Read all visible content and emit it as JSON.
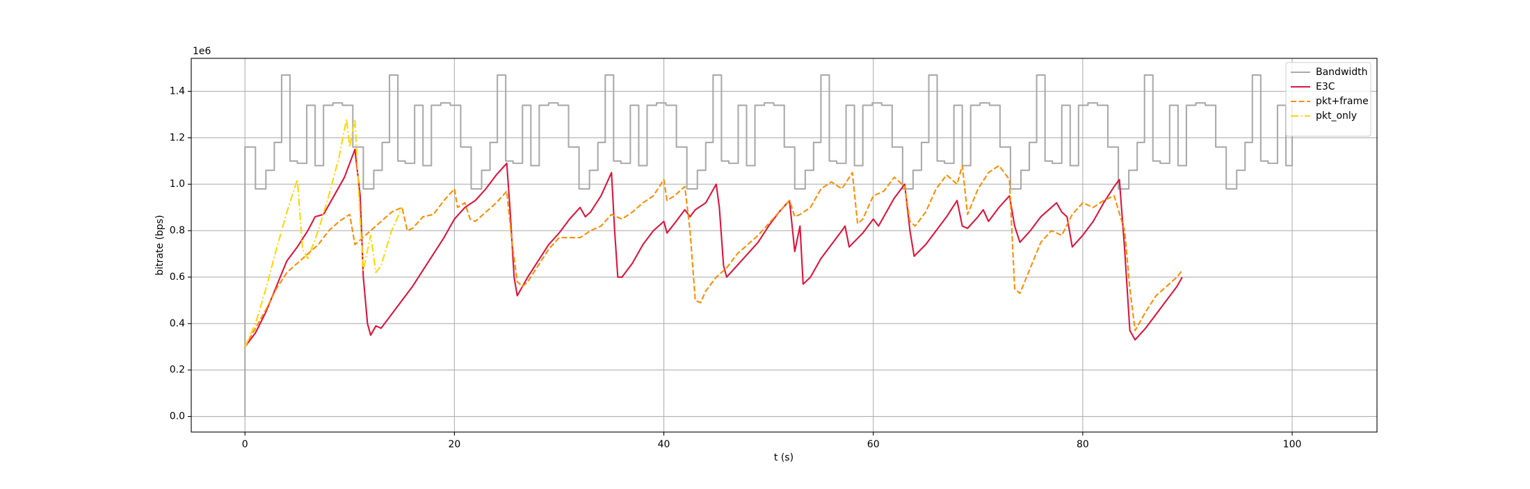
{
  "chart_data": {
    "type": "line",
    "y_offset_label": "1e6",
    "xlabel": "t (s)",
    "ylabel": "bitrate (bps)",
    "xlim": [
      -5.13,
      108.1
    ],
    "ylim": [
      -67000,
      1542000
    ],
    "xticks": [
      0,
      20,
      40,
      60,
      80,
      100
    ],
    "yticks": [
      {
        "value": 0,
        "label": "0.0"
      },
      {
        "value": 200000,
        "label": "0.2"
      },
      {
        "value": 400000,
        "label": "0.4"
      },
      {
        "value": 600000,
        "label": "0.6"
      },
      {
        "value": 800000,
        "label": "0.8"
      },
      {
        "value": 1000000,
        "label": "1.0"
      },
      {
        "value": 1200000,
        "label": "1.2"
      },
      {
        "value": 1400000,
        "label": "1.4"
      }
    ],
    "grid": true,
    "legend": "upper right",
    "series": [
      {
        "name": "Bandwidth",
        "color": "#aaaaaa",
        "linestyle": "solid",
        "drawstyle": "steps-post",
        "x": [
          0,
          0,
          1,
          2,
          2.8,
          3.5,
          4.3,
          5,
          5.9,
          6.7,
          7.5,
          8.4,
          9.3,
          10.3,
          11.3,
          12.3,
          13.1,
          13.8,
          14.6,
          15.3,
          16.2,
          17,
          17.8,
          18.7,
          19.6,
          20.6,
          21.6,
          22.6,
          23.4,
          24.1,
          24.9,
          25.6,
          26.5,
          27.3,
          28.1,
          29,
          29.9,
          30.9,
          31.9,
          32.9,
          33.7,
          34.4,
          35.2,
          35.9,
          36.8,
          37.6,
          38.4,
          39.3,
          40.2,
          41.2,
          42.2,
          43.2,
          44,
          44.7,
          45.5,
          46.2,
          47.1,
          47.9,
          48.7,
          49.6,
          50.5,
          51.5,
          52.5,
          53.5,
          54.3,
          55,
          55.8,
          56.5,
          57.4,
          58.2,
          59,
          59.9,
          60.8,
          61.8,
          62.8,
          63.8,
          64.6,
          65.3,
          66.1,
          66.8,
          67.7,
          68.5,
          69.3,
          70.2,
          71.1,
          72.1,
          73.1,
          74.1,
          74.9,
          75.6,
          76.4,
          77.1,
          78,
          78.8,
          79.6,
          80.5,
          81.4,
          82.4,
          83.4,
          84.4,
          85.2,
          85.9,
          86.7,
          87.4,
          88.3,
          89.1,
          89.9,
          90.8,
          91.7,
          92.7,
          93.7,
          94.7,
          95.5,
          96.2,
          97,
          97.7,
          98.6,
          99.4,
          100
        ],
        "values": [
          0,
          1160000,
          980000,
          1060000,
          1180000,
          1470000,
          1100000,
          1090000,
          1340000,
          1080000,
          1340000,
          1350000,
          1340000,
          1160000,
          980000,
          1060000,
          1180000,
          1470000,
          1100000,
          1090000,
          1340000,
          1080000,
          1340000,
          1350000,
          1340000,
          1160000,
          980000,
          1060000,
          1180000,
          1470000,
          1100000,
          1090000,
          1340000,
          1080000,
          1340000,
          1350000,
          1340000,
          1160000,
          980000,
          1060000,
          1180000,
          1470000,
          1100000,
          1090000,
          1340000,
          1080000,
          1340000,
          1350000,
          1340000,
          1160000,
          980000,
          1060000,
          1180000,
          1470000,
          1100000,
          1090000,
          1340000,
          1080000,
          1340000,
          1350000,
          1340000,
          1160000,
          980000,
          1060000,
          1180000,
          1470000,
          1100000,
          1090000,
          1340000,
          1080000,
          1340000,
          1350000,
          1340000,
          1160000,
          980000,
          1060000,
          1180000,
          1470000,
          1100000,
          1090000,
          1340000,
          1080000,
          1340000,
          1350000,
          1340000,
          1160000,
          980000,
          1060000,
          1180000,
          1470000,
          1100000,
          1090000,
          1340000,
          1080000,
          1340000,
          1350000,
          1340000,
          1160000,
          980000,
          1060000,
          1180000,
          1470000,
          1100000,
          1090000,
          1340000,
          1080000,
          1340000,
          1350000,
          1340000,
          1160000,
          980000,
          1060000,
          1180000,
          1470000,
          1100000,
          1090000,
          1340000,
          1080000,
          1340000
        ]
      },
      {
        "name": "E3C",
        "color": "#dc143c",
        "linestyle": "solid",
        "x": [
          0,
          1,
          2,
          3,
          4,
          5,
          6,
          6.7,
          7.5,
          8.5,
          9.5,
          10.5,
          11,
          11.3,
          11.7,
          12,
          12.5,
          13,
          14,
          15,
          16,
          17,
          18,
          19,
          20,
          21,
          22,
          23,
          24,
          25,
          25.3,
          25.7,
          26,
          27,
          28,
          29,
          30,
          31,
          32,
          32.5,
          33,
          34,
          35,
          35.3,
          35.6,
          36,
          37,
          38,
          39,
          40,
          40.3,
          41,
          42,
          42.5,
          43,
          44,
          45,
          45.3,
          45.7,
          46,
          47,
          48,
          49,
          50,
          51,
          52,
          52.5,
          53,
          53.3,
          54,
          55,
          56,
          57,
          57.3,
          57.7,
          59,
          60,
          60.5,
          61,
          62,
          63,
          63.5,
          63.9,
          65,
          66,
          67,
          68,
          68.5,
          69,
          70,
          70.5,
          71,
          72,
          73,
          73.5,
          74,
          75,
          76,
          77,
          77.5,
          78,
          78.5,
          79,
          80,
          81,
          82,
          83,
          83.5,
          84,
          84.5,
          85,
          86,
          87,
          88,
          89,
          89.5
        ],
        "values": [
          300000,
          360000,
          450000,
          560000,
          670000,
          730000,
          800000,
          860000,
          870000,
          950000,
          1030000,
          1150000,
          950000,
          600000,
          400000,
          350000,
          390000,
          380000,
          440000,
          500000,
          560000,
          630000,
          700000,
          770000,
          850000,
          900000,
          930000,
          980000,
          1040000,
          1090000,
          900000,
          600000,
          520000,
          600000,
          670000,
          740000,
          790000,
          850000,
          900000,
          860000,
          880000,
          950000,
          1050000,
          800000,
          600000,
          600000,
          660000,
          740000,
          800000,
          840000,
          790000,
          830000,
          890000,
          860000,
          890000,
          920000,
          1000000,
          900000,
          650000,
          600000,
          650000,
          700000,
          750000,
          820000,
          880000,
          930000,
          710000,
          820000,
          570000,
          600000,
          680000,
          740000,
          800000,
          820000,
          730000,
          790000,
          850000,
          820000,
          860000,
          940000,
          1000000,
          800000,
          690000,
          740000,
          800000,
          860000,
          930000,
          820000,
          810000,
          860000,
          890000,
          840000,
          900000,
          950000,
          820000,
          750000,
          800000,
          860000,
          900000,
          920000,
          880000,
          860000,
          730000,
          780000,
          840000,
          920000,
          990000,
          1020000,
          720000,
          370000,
          330000,
          380000,
          440000,
          500000,
          560000,
          600000
        ]
      },
      {
        "name": "pkt+frame",
        "color": "#ff8c00",
        "linestyle": "dashed",
        "x": [
          0,
          1,
          2,
          3,
          4,
          5,
          6,
          7,
          8,
          9,
          10,
          10.5,
          11,
          12,
          13,
          14,
          15,
          15.5,
          16,
          17,
          18,
          19,
          20,
          20.3,
          21,
          21.5,
          22,
          23,
          24,
          25,
          25.5,
          26,
          26.5,
          27,
          28,
          29,
          30,
          31,
          32,
          33,
          34,
          35,
          36,
          37,
          38,
          39,
          40,
          40.3,
          41,
          42,
          42.5,
          43,
          43.5,
          44,
          45,
          46,
          47,
          48,
          49,
          50,
          51,
          52,
          52.5,
          53,
          54,
          55,
          56,
          57,
          58,
          58.5,
          59,
          60,
          61,
          62,
          63,
          63.5,
          64,
          65,
          66,
          67,
          68,
          68.5,
          69,
          70,
          71,
          72,
          73,
          73.5,
          74,
          75,
          76,
          77,
          78,
          79,
          80,
          81,
          82,
          83,
          84,
          84.5,
          85,
          86,
          87,
          88,
          89,
          89.5
        ],
        "values": [
          300000,
          380000,
          460000,
          550000,
          620000,
          660000,
          700000,
          740000,
          800000,
          840000,
          870000,
          740000,
          760000,
          800000,
          840000,
          880000,
          900000,
          800000,
          810000,
          860000,
          870000,
          930000,
          980000,
          900000,
          920000,
          850000,
          840000,
          880000,
          920000,
          970000,
          750000,
          580000,
          560000,
          580000,
          650000,
          720000,
          770000,
          770000,
          770000,
          800000,
          820000,
          870000,
          850000,
          880000,
          920000,
          950000,
          1020000,
          930000,
          950000,
          990000,
          800000,
          500000,
          490000,
          540000,
          600000,
          640000,
          700000,
          740000,
          780000,
          830000,
          880000,
          930000,
          860000,
          870000,
          900000,
          980000,
          1010000,
          980000,
          1050000,
          830000,
          850000,
          950000,
          970000,
          1030000,
          990000,
          840000,
          820000,
          880000,
          980000,
          1040000,
          1000000,
          1080000,
          870000,
          980000,
          1050000,
          1080000,
          1020000,
          550000,
          530000,
          640000,
          750000,
          800000,
          780000,
          870000,
          920000,
          900000,
          930000,
          950000,
          800000,
          550000,
          370000,
          450000,
          520000,
          560000,
          600000,
          630000
        ]
      },
      {
        "name": "pkt_only",
        "color": "#ffd700",
        "linestyle": "dashdot",
        "x": [
          0,
          1,
          2,
          3,
          4,
          5,
          5.5,
          6,
          7,
          8,
          9,
          9.7,
          10,
          10.5,
          11,
          11.3,
          12,
          12.5,
          13,
          14,
          15
        ],
        "values": [
          300000,
          400000,
          550000,
          720000,
          880000,
          1020000,
          720000,
          680000,
          800000,
          950000,
          1120000,
          1280000,
          1160000,
          1280000,
          850000,
          630000,
          780000,
          620000,
          650000,
          800000,
          900000
        ]
      }
    ]
  }
}
